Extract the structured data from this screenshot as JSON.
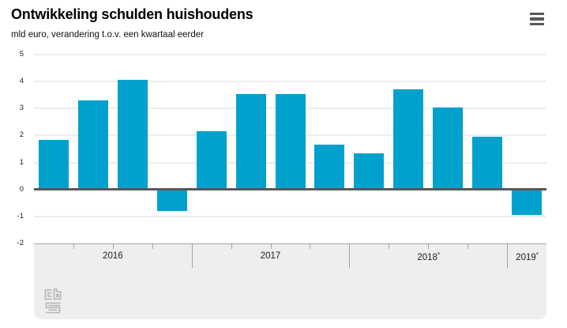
{
  "header": {
    "title": "Ontwikkeling schulden huishoudens",
    "subtitle": "mld euro, verandering t.o.v. een kwartaal eerder"
  },
  "menu": {
    "icon": "hamburger-menu-icon"
  },
  "chart_data": {
    "type": "bar",
    "title": "Ontwikkeling schulden huishoudens",
    "ylabel_unit": "mld euro, verandering t.o.v. een kwartaal eerder",
    "categories": [
      "2016 Q1",
      "2016 Q2",
      "2016 Q3",
      "2016 Q4",
      "2017 Q1",
      "2017 Q2",
      "2017 Q3",
      "2017 Q4",
      "2018 Q1",
      "2018 Q2",
      "2018 Q3",
      "2018 Q4",
      "2019 Q1"
    ],
    "values": [
      1.85,
      3.3,
      4.05,
      -0.8,
      2.15,
      3.55,
      3.55,
      1.65,
      1.35,
      3.7,
      3.05,
      1.95,
      -0.95
    ],
    "ylim": [
      -2,
      5
    ],
    "yticks": [
      5,
      4,
      3,
      2,
      1,
      0,
      -1,
      -2
    ],
    "grid": true,
    "legend_position": "none",
    "bar_color": "#00a1cd",
    "zero_line_color": "#58585a",
    "axis_band_color": "#eeeeee",
    "x_axis_groups": [
      {
        "label": "2016",
        "sup": "",
        "quarters": 4
      },
      {
        "label": "2017",
        "sup": "",
        "quarters": 4
      },
      {
        "label": "2018",
        "sup": "*",
        "quarters": 4
      },
      {
        "label": "2019",
        "sup": "*",
        "quarters": 1
      }
    ]
  },
  "branding": {
    "logo": "cbs-logo"
  }
}
